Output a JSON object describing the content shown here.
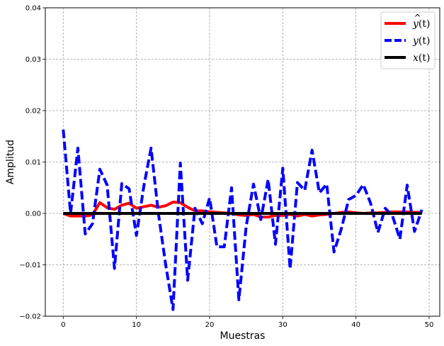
{
  "chart_data": {
    "type": "line",
    "xlabel": "Muestras",
    "ylabel": "Amplitud",
    "xlim": [
      -2.45,
      51.45
    ],
    "ylim": [
      -0.02,
      0.04
    ],
    "xticks": [
      0,
      10,
      20,
      30,
      40,
      50
    ],
    "yticks": [
      -0.02,
      -0.01,
      0.0,
      0.01,
      0.02,
      0.03,
      0.04
    ],
    "ytick_labels": [
      "−0.02",
      "−0.01",
      "0.00",
      "0.01",
      "0.02",
      "0.03",
      "0.04"
    ],
    "grid": true,
    "legend_position": "top-right",
    "x": [
      0,
      1,
      2,
      3,
      4,
      5,
      6,
      7,
      8,
      9,
      10,
      11,
      12,
      13,
      14,
      15,
      16,
      17,
      18,
      19,
      20,
      21,
      22,
      23,
      24,
      25,
      26,
      27,
      28,
      29,
      30,
      31,
      32,
      33,
      34,
      35,
      36,
      37,
      38,
      39,
      40,
      41,
      42,
      43,
      44,
      45,
      46,
      47,
      48,
      49
    ],
    "series": [
      {
        "name": "ŷ(t)",
        "color": "#ff0000",
        "dash": "solid",
        "values": [
          0.0,
          -0.0005,
          -0.0005,
          -0.0005,
          -0.0003,
          0.0021,
          0.0011,
          0.0008,
          0.0016,
          0.002,
          0.001,
          0.0013,
          0.0016,
          0.0012,
          0.0015,
          0.0022,
          0.0021,
          0.0012,
          0.0005,
          0.0005,
          0.0003,
          0.0002,
          0.0001,
          0.0,
          -0.0003,
          -0.0004,
          -0.0002,
          -0.0007,
          -0.0007,
          -0.0004,
          -0.0004,
          -0.0002,
          -0.0005,
          -0.0002,
          -0.0005,
          -0.0003,
          -0.0002,
          0.0,
          0.0002,
          0.0003,
          0.0001,
          0.0,
          0.0001,
          0.0001,
          0.0002,
          0.0003,
          0.0003,
          0.0003,
          0.0002,
          0.0002
        ]
      },
      {
        "name": "y(t)",
        "color": "#0000ff",
        "dash": "dashed",
        "values": [
          0.0163,
          0.0,
          0.0127,
          -0.004,
          -0.002,
          0.0086,
          0.0055,
          -0.0107,
          0.0058,
          0.0048,
          -0.0043,
          0.0052,
          0.0127,
          0.0,
          -0.01,
          -0.0187,
          0.0098,
          -0.013,
          0.001,
          -0.002,
          0.003,
          -0.0065,
          -0.0065,
          0.005,
          -0.0168,
          -0.0025,
          0.0057,
          -0.0012,
          0.0066,
          -0.006,
          0.0088,
          -0.0108,
          0.006,
          0.0045,
          0.0123,
          0.004,
          0.0057,
          -0.0075,
          -0.003,
          0.0027,
          0.0035,
          0.0056,
          0.002,
          -0.0037,
          0.001,
          -0.0005,
          -0.005,
          0.0055,
          -0.0035,
          0.0007
        ]
      },
      {
        "name": "x(t)",
        "color": "#000000",
        "dash": "solid",
        "values": [
          0,
          0,
          0,
          0,
          0,
          0,
          0,
          0,
          0,
          0,
          0,
          0,
          0,
          0,
          0,
          0,
          0,
          0,
          0,
          0,
          0,
          0,
          0,
          0,
          0,
          0,
          0,
          0,
          0,
          0,
          0,
          0,
          0,
          0,
          0,
          0,
          0,
          0,
          0,
          0,
          0,
          0,
          0,
          0,
          0,
          0,
          0,
          0,
          0,
          0
        ]
      }
    ],
    "legend": [
      {
        "base": "y",
        "hat": true,
        "arg": "(t)",
        "color": "#ff0000",
        "dash": "solid"
      },
      {
        "base": "y",
        "hat": false,
        "arg": "(t)",
        "color": "#0000ff",
        "dash": "dashed"
      },
      {
        "base": "x",
        "hat": false,
        "arg": "(t)",
        "color": "#000000",
        "dash": "solid"
      }
    ]
  }
}
